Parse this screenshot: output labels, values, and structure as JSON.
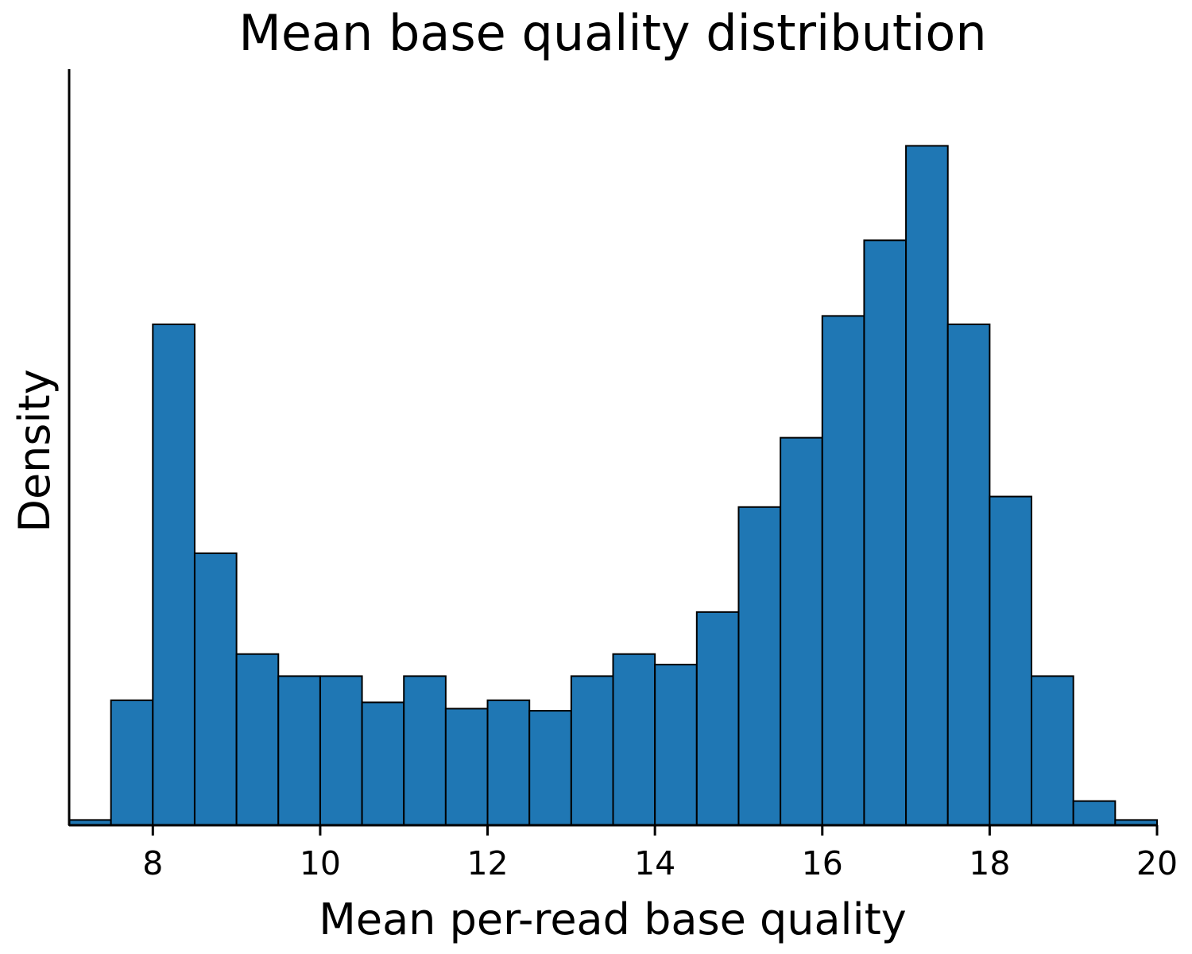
{
  "chart_data": {
    "type": "bar",
    "title": "Mean base quality distribution",
    "xlabel": "Mean per-read base quality",
    "ylabel": "Density",
    "xlim": [
      7,
      20
    ],
    "ylim": [
      0,
      0.36
    ],
    "y_ticks_shown": false,
    "grid": false,
    "legend": "none",
    "bar_color": "#1f77b4",
    "edge_color": "#000000",
    "bin_width": 0.5,
    "bin_starts": [
      7.0,
      7.5,
      8.0,
      8.5,
      9.0,
      9.5,
      10.0,
      10.5,
      11.0,
      11.5,
      12.0,
      12.5,
      13.0,
      13.5,
      14.0,
      14.5,
      15.0,
      15.5,
      16.0,
      16.5,
      17.0,
      17.5,
      18.0,
      18.5,
      19.0,
      19.5
    ],
    "values": [
      0.0025,
      0.0595,
      0.2385,
      0.1295,
      0.0815,
      0.071,
      0.071,
      0.0585,
      0.071,
      0.0555,
      0.0595,
      0.0545,
      0.071,
      0.0815,
      0.0765,
      0.1015,
      0.1515,
      0.1845,
      0.2425,
      0.2785,
      0.3235,
      0.2385,
      0.1565,
      0.071,
      0.0115,
      0.0025
    ],
    "x_ticks": [
      8,
      10,
      12,
      14,
      16,
      18,
      20
    ],
    "x_tick_labels": [
      "8",
      "10",
      "12",
      "14",
      "16",
      "18",
      "20"
    ]
  }
}
